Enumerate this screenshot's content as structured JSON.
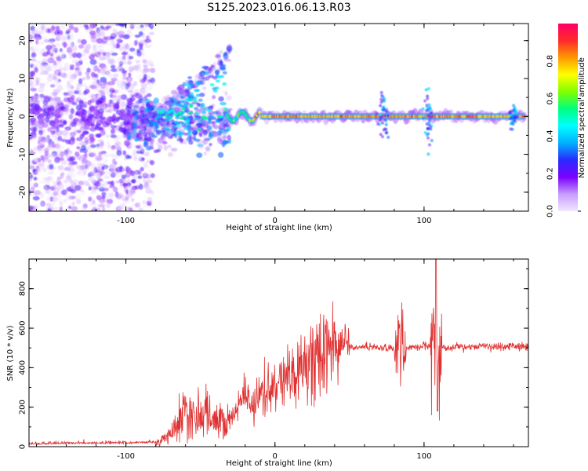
{
  "figure": {
    "title": "S125.2023.016.06.13.R03"
  },
  "chart_data": [
    {
      "type": "heatmap",
      "xlabel": "Height of straight line (km)",
      "ylabel": "Frequency (Hz)",
      "xlim": [
        -165,
        170
      ],
      "ylim": [
        -25,
        24.5
      ],
      "xticks": [
        -100,
        0,
        100
      ],
      "yticks": [
        -20,
        -10,
        0,
        10,
        20
      ],
      "colorbar": {
        "label": "Normalized spectral amplitude",
        "range": [
          0,
          1
        ],
        "ticks": [
          0.0,
          0.2,
          0.4,
          0.6,
          0.8
        ],
        "colors": [
          "#f2e8ff",
          "#c79cff",
          "#7a00ff",
          "#2a2aff",
          "#00b0ff",
          "#00ffff",
          "#00ff80",
          "#80ff00",
          "#ffff00",
          "#ff9900",
          "#ff2a2a",
          "#ff0066"
        ]
      },
      "features": [
        {
          "x_range": [
            -165,
            -82
          ],
          "note": "broadband scatter, low amplitude"
        },
        {
          "x_range": [
            -82,
            -30
          ],
          "note": "rising curved signal from 0 to ~14 Hz"
        },
        {
          "x_range": [
            -30,
            170
          ],
          "note": "strong narrow line at 0 Hz, amplitude ~0.9"
        }
      ]
    },
    {
      "type": "line",
      "xlabel": "Height of straight line (km)",
      "ylabel": "SNR (10 * v/v)",
      "xlim": [
        -165,
        170
      ],
      "ylim": [
        0,
        950
      ],
      "xticks": [
        -100,
        0,
        100
      ],
      "yticks": [
        0,
        200,
        400,
        600,
        800
      ],
      "color": "#e03030",
      "series": [
        {
          "x": [
            -165,
            -140,
            -120,
            -100,
            -90,
            -80,
            -75,
            -70,
            -65,
            -60,
            -55,
            -50,
            -45,
            -40,
            -35,
            -30,
            -25,
            -20,
            -15,
            -10,
            -5,
            0,
            5,
            10,
            15,
            20,
            25,
            30,
            35,
            40,
            45,
            50,
            55,
            60,
            65,
            70,
            75,
            80,
            85,
            90,
            95,
            100,
            105,
            108,
            110,
            115,
            120,
            130,
            140,
            150,
            160,
            170
          ],
          "y": [
            10,
            14,
            14,
            15,
            16,
            18,
            40,
            70,
            110,
            140,
            150,
            145,
            150,
            130,
            130,
            150,
            200,
            260,
            220,
            240,
            270,
            300,
            330,
            360,
            380,
            400,
            420,
            450,
            480,
            500,
            510,
            505,
            500,
            505,
            505,
            500,
            505,
            500,
            490,
            505,
            500,
            510,
            500,
            520,
            505,
            500,
            500,
            505,
            510,
            505,
            510,
            505
          ]
        }
      ],
      "annotations": [
        {
          "x": 108,
          "y": 950,
          "note": "peak"
        },
        {
          "x": 84,
          "y": 700,
          "note": "spike"
        },
        {
          "x": 40,
          "y": 690,
          "note": "spike"
        }
      ]
    }
  ]
}
